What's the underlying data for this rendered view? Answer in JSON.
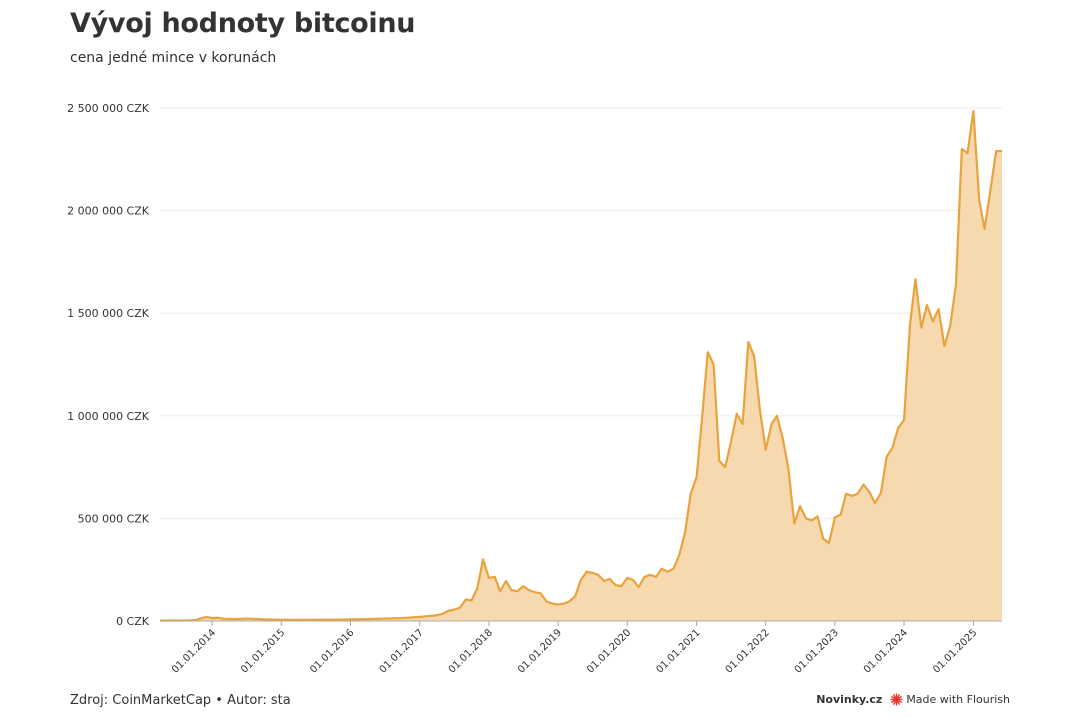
{
  "title": "Vývoj hodnoty bitcoinu",
  "subtitle": "cena jedné mince v korunách",
  "footer": {
    "source": "Zdroj: CoinMarketCap • Autor: sta",
    "publisher": "Novinky.cz",
    "made_with": "Made with Flourish"
  },
  "colors": {
    "line": "#e8a33d",
    "area": "#f6d9ae",
    "grid": "#eeeeee",
    "flourish": "#e8332a"
  },
  "chart_data": {
    "type": "area",
    "title": "Vývoj hodnoty bitcoinu",
    "subtitle": "cena jedné mince v korunách",
    "xlabel": "",
    "ylabel": "",
    "ylim": [
      0,
      2500000
    ],
    "xlim": [
      "2013-04-01",
      "2025-06-01"
    ],
    "y_ticks": [
      0,
      500000,
      1000000,
      1500000,
      2000000,
      2500000
    ],
    "y_tick_labels": [
      "0 CZK",
      "500 000 CZK",
      "1 000 000 CZK",
      "1 500 000 CZK",
      "2 000 000 CZK",
      "2 500 000 CZK"
    ],
    "x_ticks": [
      "2014-01-01",
      "2015-01-01",
      "2016-01-01",
      "2017-01-01",
      "2018-01-01",
      "2019-01-01",
      "2020-01-01",
      "2021-01-01",
      "2022-01-01",
      "2023-01-01",
      "2024-01-01",
      "2025-01-01"
    ],
    "x_tick_labels": [
      "01.01.2014",
      "01.01.2015",
      "01.01.2016",
      "01.01.2017",
      "01.01.2018",
      "01.01.2019",
      "01.01.2020",
      "01.01.2021",
      "01.01.2022",
      "01.01.2023",
      "01.01.2024",
      "01.01.2025"
    ],
    "grid": true,
    "legend": "none",
    "x": [
      "2013-04-01",
      "2013-06-01",
      "2013-08-01",
      "2013-10-01",
      "2013-12-01",
      "2014-01-01",
      "2014-02-01",
      "2014-03-01",
      "2014-05-01",
      "2014-07-01",
      "2014-10-01",
      "2015-01-01",
      "2015-04-01",
      "2015-07-01",
      "2015-10-01",
      "2016-01-01",
      "2016-04-01",
      "2016-07-01",
      "2016-10-01",
      "2017-01-01",
      "2017-03-01",
      "2017-04-01",
      "2017-05-01",
      "2017-06-01",
      "2017-07-01",
      "2017-08-01",
      "2017-09-01",
      "2017-10-01",
      "2017-11-01",
      "2017-12-01",
      "2018-01-01",
      "2018-02-01",
      "2018-03-01",
      "2018-04-01",
      "2018-05-01",
      "2018-06-01",
      "2018-07-01",
      "2018-08-01",
      "2018-09-01",
      "2018-10-01",
      "2018-11-01",
      "2018-12-01",
      "2019-01-01",
      "2019-02-01",
      "2019-03-01",
      "2019-04-01",
      "2019-05-01",
      "2019-06-01",
      "2019-07-01",
      "2019-08-01",
      "2019-09-01",
      "2019-10-01",
      "2019-11-01",
      "2019-12-01",
      "2020-01-01",
      "2020-02-01",
      "2020-03-01",
      "2020-04-01",
      "2020-05-01",
      "2020-06-01",
      "2020-07-01",
      "2020-08-01",
      "2020-09-01",
      "2020-10-01",
      "2020-11-01",
      "2020-12-01",
      "2021-01-01",
      "2021-02-01",
      "2021-03-01",
      "2021-04-01",
      "2021-05-01",
      "2021-06-01",
      "2021-07-01",
      "2021-08-01",
      "2021-09-01",
      "2021-10-01",
      "2021-11-01",
      "2021-12-01",
      "2022-01-01",
      "2022-02-01",
      "2022-03-01",
      "2022-04-01",
      "2022-05-01",
      "2022-06-01",
      "2022-07-01",
      "2022-08-01",
      "2022-09-01",
      "2022-10-01",
      "2022-11-01",
      "2022-12-01",
      "2023-01-01",
      "2023-02-01",
      "2023-03-01",
      "2023-04-01",
      "2023-05-01",
      "2023-06-01",
      "2023-07-01",
      "2023-08-01",
      "2023-09-01",
      "2023-10-01",
      "2023-11-01",
      "2023-12-01",
      "2024-01-01",
      "2024-02-01",
      "2024-03-01",
      "2024-04-01",
      "2024-05-01",
      "2024-06-01",
      "2024-07-01",
      "2024-08-01",
      "2024-09-01",
      "2024-10-01",
      "2024-11-01",
      "2024-12-01",
      "2025-01-01",
      "2025-02-01",
      "2025-03-01",
      "2025-04-01",
      "2025-05-01",
      "2025-06-01"
    ],
    "series": [
      {
        "values": [
          2000,
          2500,
          2200,
          3500,
          20000,
          14000,
          16000,
          11000,
          9000,
          12000,
          8000,
          6500,
          5500,
          6000,
          6000,
          8000,
          9000,
          12000,
          14000,
          20000,
          25000,
          28000,
          35000,
          50000,
          55000,
          65000,
          105000,
          100000,
          160000,
          300000,
          210000,
          215000,
          145000,
          195000,
          150000,
          145000,
          170000,
          150000,
          140000,
          135000,
          95000,
          85000,
          80000,
          85000,
          95000,
          120000,
          200000,
          240000,
          235000,
          225000,
          195000,
          205000,
          175000,
          170000,
          210000,
          200000,
          165000,
          215000,
          225000,
          215000,
          255000,
          240000,
          255000,
          320000,
          430000,
          620000,
          700000,
          1010000,
          1310000,
          1250000,
          780000,
          750000,
          870000,
          1010000,
          960000,
          1360000,
          1290000,
          1030000,
          835000,
          960000,
          1000000,
          890000,
          740000,
          475000,
          560000,
          500000,
          490000,
          510000,
          400000,
          380000,
          505000,
          520000,
          620000,
          610000,
          620000,
          665000,
          630000,
          575000,
          625000,
          800000,
          845000,
          940000,
          980000,
          1440000,
          1665000,
          1430000,
          1540000,
          1460000,
          1520000,
          1340000,
          1440000,
          1640000,
          2300000,
          2280000,
          2485000,
          2050000,
          1910000,
          2100000,
          2290000,
          2290000
        ]
      }
    ]
  }
}
